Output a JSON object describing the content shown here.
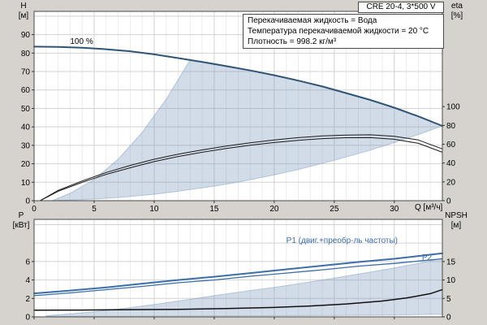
{
  "window": {
    "background": "#d6d3ce",
    "accent_curve_color": "#2f5475",
    "power_curve_color": "#3c6ea8",
    "envelope_color": "#c9d6e4"
  },
  "chart_data": [
    {
      "type": "line",
      "panel": "head-flow",
      "title": "CRE 20-4, 3*500 V",
      "info_lines": [
        "Перекачиваемая жидкость = Вода",
        "Температура перекачиваемой жидкости = 20 °C",
        "Плотность = 998.2 кг/м³"
      ],
      "x": {
        "min": 0,
        "max": 34,
        "ticks": [
          0,
          5,
          10,
          15,
          20,
          25,
          30
        ],
        "minor_step": 1,
        "label": "Q [м³/ч]",
        "show_tick_labels": true
      },
      "y_left": {
        "min": 0,
        "max": 102.6,
        "ticks": [
          0,
          10,
          20,
          30,
          40,
          50,
          60,
          70,
          80,
          90
        ],
        "grid": [
          10,
          20,
          30,
          40,
          50,
          60,
          70,
          80,
          90,
          100
        ],
        "label": "H",
        "unit": "[м]"
      },
      "y_right": {
        "min": 0,
        "max": 201.2,
        "ticks": [
          0,
          20,
          40,
          60,
          80,
          100
        ],
        "label": "eta",
        "unit": "[%]"
      },
      "envelope": [
        [
          1.5,
          0
        ],
        [
          3,
          4
        ],
        [
          5,
          11.5
        ],
        [
          7,
          22.5
        ],
        [
          9,
          37
        ],
        [
          11,
          55
        ],
        [
          13,
          76.3
        ],
        [
          15,
          74.2
        ],
        [
          18,
          70.8
        ],
        [
          20,
          68
        ],
        [
          23,
          63.5
        ],
        [
          25,
          60.2
        ],
        [
          28,
          54.7
        ],
        [
          30,
          50.5
        ],
        [
          32,
          45.8
        ],
        [
          34,
          40.5
        ],
        [
          32,
          35.9
        ],
        [
          30,
          31.5
        ],
        [
          28,
          27.4
        ],
        [
          25,
          21.9
        ],
        [
          22,
          16.9
        ],
        [
          20,
          14
        ],
        [
          17,
          10.1
        ],
        [
          15,
          7.9
        ],
        [
          12,
          5.1
        ],
        [
          10,
          3.5
        ],
        [
          7,
          1.7
        ],
        [
          5,
          0.9
        ],
        [
          3,
          0.3
        ]
      ],
      "series": [
        {
          "name": "H-100pct-speed",
          "axis": "left",
          "color": "#2f5475",
          "width": 2,
          "points": [
            [
              0,
              83.5
            ],
            [
              2,
              83.3
            ],
            [
              4,
              82.9
            ],
            [
              6,
              82.1
            ],
            [
              8,
              81
            ],
            [
              10,
              79.3
            ],
            [
              12,
              77.3
            ],
            [
              14,
              75.2
            ],
            [
              16,
              72.9
            ],
            [
              18,
              70.6
            ],
            [
              20,
              68
            ],
            [
              22,
              65.1
            ],
            [
              24,
              61.9
            ],
            [
              26,
              58.3
            ],
            [
              28,
              54.6
            ],
            [
              30,
              50.4
            ],
            [
              32,
              45.7
            ],
            [
              34,
              40.5
            ]
          ]
        },
        {
          "name": "eta-pump",
          "axis": "right",
          "color": "#1a1a1a",
          "width": 1,
          "points": [
            [
              0.5,
              0
            ],
            [
              2,
              11
            ],
            [
              4,
              21
            ],
            [
              6,
              30
            ],
            [
              8,
              37.5
            ],
            [
              10,
              44
            ],
            [
              12,
              49.5
            ],
            [
              14,
              54
            ],
            [
              16,
              58
            ],
            [
              18,
              61.5
            ],
            [
              20,
              64.5
            ],
            [
              22,
              67
            ],
            [
              24,
              68.8
            ],
            [
              26,
              69.8
            ],
            [
              28,
              70
            ],
            [
              30,
              68.5
            ],
            [
              32,
              64.5
            ],
            [
              34,
              55
            ]
          ]
        },
        {
          "name": "eta-total",
          "axis": "right",
          "color": "#1a1a1a",
          "width": 1,
          "points": [
            [
              0.5,
              0
            ],
            [
              2,
              10
            ],
            [
              4,
              19.5
            ],
            [
              6,
              28
            ],
            [
              8,
              35
            ],
            [
              10,
              41.5
            ],
            [
              12,
              47
            ],
            [
              14,
              51.5
            ],
            [
              16,
              55.5
            ],
            [
              18,
              59
            ],
            [
              20,
              61.8
            ],
            [
              22,
              64.2
            ],
            [
              24,
              66
            ],
            [
              26,
              66.9
            ],
            [
              28,
              67
            ],
            [
              30,
              65.3
            ],
            [
              32,
              61
            ],
            [
              34,
              51.5
            ]
          ]
        }
      ],
      "annotations": [
        {
          "text": "100 %",
          "x": 3.0,
          "y": 88.5,
          "color": "#000000"
        }
      ]
    },
    {
      "type": "line",
      "panel": "power-npsh",
      "x": {
        "min": 0,
        "max": 34,
        "ticks": [
          0,
          5,
          10,
          15,
          20,
          25,
          30
        ],
        "minor_step": 1,
        "label": "",
        "show_tick_labels": false
      },
      "y_left": {
        "min": 0,
        "max": 10.57,
        "ticks": [
          0,
          2,
          4,
          6
        ],
        "grid": [
          2,
          4,
          6,
          8,
          10
        ],
        "label": "P",
        "unit": "[кВт]"
      },
      "y_right": {
        "min": 0,
        "max": 26.43,
        "ticks": [
          0,
          5,
          10,
          15
        ],
        "label": "NPSH",
        "unit": "[м]"
      },
      "envelope": [
        [
          1,
          0.12
        ],
        [
          5,
          0.55
        ],
        [
          8,
          1.0
        ],
        [
          10,
          1.35
        ],
        [
          13,
          1.9
        ],
        [
          15,
          2.3
        ],
        [
          18,
          2.85
        ],
        [
          20,
          3.2
        ],
        [
          23,
          3.8
        ],
        [
          25,
          4.2
        ],
        [
          28,
          4.85
        ],
        [
          30,
          5.3
        ],
        [
          32,
          5.8
        ],
        [
          34,
          6.35
        ],
        [
          34,
          0.3
        ],
        [
          30,
          0.2
        ],
        [
          25,
          0.15
        ],
        [
          20,
          0.12
        ],
        [
          15,
          0.1
        ],
        [
          10,
          0.08
        ],
        [
          5,
          0.06
        ],
        [
          1,
          0.05
        ]
      ],
      "series": [
        {
          "name": "P1",
          "axis": "left",
          "color": "#3c6ea8",
          "width": 2,
          "points": [
            [
              0,
              2.55
            ],
            [
              3,
              2.85
            ],
            [
              6,
              3.2
            ],
            [
              9,
              3.6
            ],
            [
              12,
              4.0
            ],
            [
              15,
              4.35
            ],
            [
              18,
              4.75
            ],
            [
              21,
              5.15
            ],
            [
              24,
              5.55
            ],
            [
              27,
              5.95
            ],
            [
              30,
              6.3
            ],
            [
              32,
              6.6
            ],
            [
              34,
              6.9
            ]
          ]
        },
        {
          "name": "P2",
          "axis": "left",
          "color": "#3c6ea8",
          "width": 1.3,
          "points": [
            [
              0,
              2.3
            ],
            [
              3,
              2.6
            ],
            [
              6,
              2.95
            ],
            [
              9,
              3.3
            ],
            [
              12,
              3.7
            ],
            [
              15,
              4.0
            ],
            [
              18,
              4.4
            ],
            [
              21,
              4.75
            ],
            [
              24,
              5.1
            ],
            [
              27,
              5.5
            ],
            [
              30,
              5.8
            ],
            [
              32,
              6.05
            ],
            [
              34,
              6.3
            ]
          ]
        },
        {
          "name": "NPSH",
          "axis": "right",
          "color": "#111111",
          "width": 1.5,
          "points": [
            [
              0,
              1.8
            ],
            [
              4,
              1.85
            ],
            [
              8,
              1.95
            ],
            [
              12,
              2.05
            ],
            [
              16,
              2.25
            ],
            [
              20,
              2.55
            ],
            [
              23,
              2.95
            ],
            [
              26,
              3.5
            ],
            [
              29,
              4.3
            ],
            [
              31,
              5.1
            ],
            [
              33,
              6.3
            ],
            [
              34,
              7.4
            ]
          ]
        }
      ],
      "annotations": [
        {
          "text": "P1 (двиг.+преобр-ль частоты)",
          "x": 21.0,
          "y": 8.7,
          "color": "#3c6ea8"
        },
        {
          "text": "P2",
          "x": 32.3,
          "y": 6.9,
          "color": "#3c6ea8"
        }
      ]
    }
  ]
}
